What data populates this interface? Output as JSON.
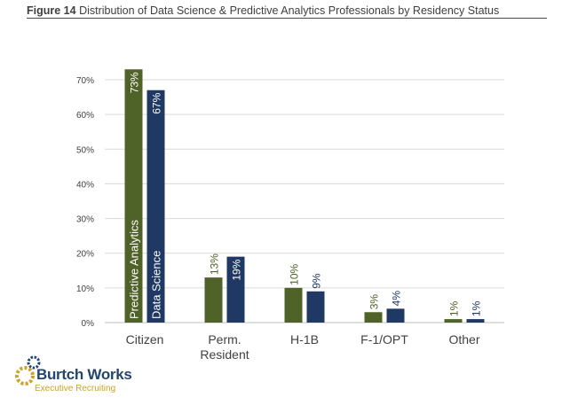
{
  "header": {
    "figure_number": "Figure 14",
    "title": "Distribution of Data Science & Predictive Analytics Professionals by Residency Status"
  },
  "chart_data": {
    "type": "bar",
    "title": "Distribution of Data Science & Predictive Analytics Professionals by Residency Status",
    "categories": [
      "Citizen",
      "Perm. Resident",
      "H-1B",
      "F-1/OPT",
      "Other"
    ],
    "category_lines": [
      [
        "Citizen"
      ],
      [
        "Perm.",
        "Resident"
      ],
      [
        "H-1B"
      ],
      [
        "F-1/OPT"
      ],
      [
        "Other"
      ]
    ],
    "series": [
      {
        "name": "Predictive Analytics",
        "color": "#4f6228",
        "values": [
          73,
          13,
          10,
          3,
          1
        ],
        "labels": [
          "73%",
          "13%",
          "10%",
          "3%",
          "1%"
        ]
      },
      {
        "name": "Data Science",
        "color": "#1f3864",
        "values": [
          67,
          19,
          9,
          4,
          1
        ],
        "labels": [
          "67%",
          "19%",
          "9%",
          "4%",
          "1%"
        ]
      }
    ],
    "ylim": [
      0,
      70
    ],
    "yticks": [
      0,
      10,
      20,
      30,
      40,
      50,
      60,
      70
    ],
    "ytick_labels": [
      "0%",
      "10%",
      "20%",
      "30%",
      "40%",
      "50%",
      "60%",
      "70%"
    ],
    "xlabel": "",
    "ylabel": "",
    "grid": true
  },
  "logo": {
    "name": "Burtch Works",
    "tagline": "Executive Recruiting",
    "colors": {
      "navy": "#24466e",
      "gold": "#c9a227"
    }
  }
}
